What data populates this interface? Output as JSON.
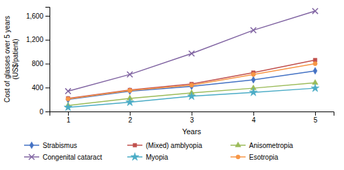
{
  "chart_data": {
    "type": "line",
    "xlabel": "Years",
    "ylabel": "Cost of glasses over 5 years\n(US$/patient)",
    "x": [
      1,
      2,
      3,
      4,
      5
    ],
    "series": [
      {
        "name": "Strabismus",
        "color": "#4472C4",
        "marker": "diamond",
        "line_style": "solid",
        "values": [
          200,
          340,
          420,
          530,
          680
        ]
      },
      {
        "name": "(Mixed) amblyopia",
        "color": "#C0504D",
        "marker": "square",
        "line_style": "solid",
        "values": [
          220,
          360,
          460,
          650,
          860
        ]
      },
      {
        "name": "Anisometropia",
        "color": "#9BBB59",
        "marker": "triangle",
        "line_style": "solid",
        "values": [
          100,
          220,
          310,
          390,
          480
        ]
      },
      {
        "name": "Congenital cataract",
        "color": "#8064A2",
        "marker": "x",
        "line_style": "solid",
        "values": [
          340,
          620,
          970,
          1360,
          1680
        ]
      },
      {
        "name": "Myopia",
        "color": "#4BACC6",
        "marker": "star",
        "line_style": "solid",
        "values": [
          70,
          155,
          255,
          320,
          390
        ]
      },
      {
        "name": "Esotropia",
        "color": "#F79646",
        "marker": "circle",
        "line_style": "solid",
        "values": [
          210,
          350,
          440,
          620,
          800
        ]
      }
    ],
    "xlim": [
      0.7,
      5.3
    ],
    "xticks": [
      1,
      2,
      3,
      4,
      5
    ],
    "ylim": [
      0,
      1750
    ],
    "yticks": [
      0,
      400,
      800,
      {
        "value": 1200,
        "label": "1,200"
      },
      {
        "value": 1600,
        "label": "1,600"
      }
    ],
    "grid": false,
    "legend": "bottom"
  }
}
